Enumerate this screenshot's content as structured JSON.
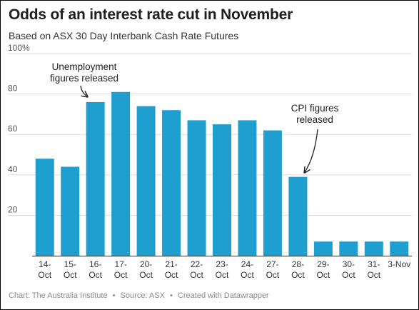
{
  "title": "Odds of an interest rate cut in November",
  "subtitle": "Based on ASX 30 Day Interbank Cash Rate Futures",
  "footer": {
    "chart": "Chart: The Australia Institute",
    "source": "Source: ASX",
    "created": "Created with Datawrapper",
    "separator": "•"
  },
  "colors": {
    "bar": "#1f9fcf",
    "grid": "#dddddd",
    "axis": "#333333",
    "border": "#000000"
  },
  "chart_data": {
    "type": "bar",
    "categories": [
      [
        "14-",
        "Oct"
      ],
      [
        "15-",
        "Oct"
      ],
      [
        "16-",
        "Oct"
      ],
      [
        "17-",
        "Oct"
      ],
      [
        "20-",
        "Oct"
      ],
      [
        "21-",
        "Oct"
      ],
      [
        "22-",
        "Oct"
      ],
      [
        "23-",
        "Oct"
      ],
      [
        "24-",
        "Oct"
      ],
      [
        "27-",
        "Oct"
      ],
      [
        "28-",
        "Oct"
      ],
      [
        "29-",
        "Oct"
      ],
      [
        "30-",
        "Oct"
      ],
      [
        "31-",
        "Oct"
      ],
      [
        "3-Nov"
      ]
    ],
    "values": [
      48,
      44,
      76,
      81,
      74,
      72,
      67,
      65,
      67,
      62,
      39,
      7,
      7,
      7,
      7
    ],
    "ylim": [
      0,
      100
    ],
    "yticks": [
      {
        "value": 0,
        "label": ""
      },
      {
        "value": 20,
        "label": "20"
      },
      {
        "value": 40,
        "label": "40"
      },
      {
        "value": 60,
        "label": "60"
      },
      {
        "value": 80,
        "label": "80"
      },
      {
        "value": 100,
        "label": "100%"
      }
    ],
    "grid": true,
    "annotations": [
      {
        "lines": [
          "Unemployment",
          "figures released"
        ],
        "category_index": 2
      },
      {
        "lines": [
          "CPI figures",
          "released"
        ],
        "category_index": 10
      }
    ]
  }
}
